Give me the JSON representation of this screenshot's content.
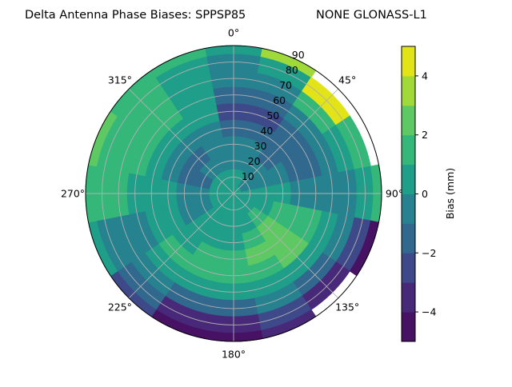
{
  "title_left": "Delta Antenna Phase Biases: SPPSP85",
  "title_right": "NONE GLONASS-L1",
  "chart_data": {
    "type": "heatmap",
    "projection": "polar",
    "theta_zero": "north",
    "theta_direction": "clockwise",
    "angle_tick_labels": [
      "0°",
      "45°",
      "90°",
      "135°",
      "180°",
      "225°",
      "270°",
      "315°"
    ],
    "radial_tick_labels": [
      "10",
      "20",
      "30",
      "40",
      "50",
      "60",
      "70",
      "80",
      "90"
    ],
    "radial_range": [
      0,
      90
    ],
    "grid": true,
    "colorbar": {
      "label": "Bias (mm)",
      "levels": [
        -5,
        -4,
        -3,
        -2,
        -1,
        0,
        1,
        2,
        3,
        4,
        5
      ],
      "tick_labels": [
        "4",
        "2",
        "0",
        "−2",
        "−4"
      ],
      "tick_values": [
        4,
        2,
        0,
        -2,
        -4
      ],
      "colors": [
        "#471164",
        "#482878",
        "#3e4989",
        "#31688e",
        "#26828e",
        "#1f9e89",
        "#35b779",
        "#5ec962",
        "#9fda3a",
        "#e3e418"
      ]
    },
    "azimuths": [
      0,
      22.5,
      45,
      67.5,
      90,
      112.5,
      135,
      157.5,
      180,
      202.5,
      225,
      247.5,
      270,
      292.5,
      315,
      337.5
    ],
    "zeniths": [
      0,
      10,
      20,
      30,
      40,
      50,
      60,
      70,
      80,
      90
    ],
    "values": [
      [
        0.5,
        0.5,
        -0.5,
        -0.5,
        -1.5,
        -2.5,
        -1.5,
        -0.5,
        -0.5,
        0.5
      ],
      [
        0.5,
        0.5,
        -0.5,
        -0.5,
        -1.5,
        -2.5,
        -1.5,
        -0.5,
        0.5,
        3.5
      ],
      [
        0.5,
        -0.5,
        -0.5,
        -1.5,
        -1.5,
        -1.5,
        -0.5,
        1.5,
        4.5,
        null
      ],
      [
        0.5,
        -0.5,
        -0.5,
        -0.5,
        -1.5,
        -1.5,
        -0.5,
        0.5,
        1.5,
        null
      ],
      [
        0.5,
        0.5,
        0.5,
        0.5,
        -0.5,
        -0.5,
        -0.5,
        -0.5,
        0.5,
        1.5
      ],
      [
        0.5,
        0.5,
        0.5,
        1.5,
        1.5,
        1.5,
        0.5,
        -0.5,
        -2.5,
        -4.5
      ],
      [
        0.5,
        0.5,
        1.5,
        2.5,
        2.5,
        2.5,
        0.5,
        -1.5,
        -3.5,
        null
      ],
      [
        0.5,
        0.5,
        0.5,
        1.5,
        2.5,
        1.5,
        0.5,
        -0.5,
        -2.5,
        -3.5
      ],
      [
        0.5,
        0.5,
        0.5,
        0.5,
        1.5,
        1.5,
        0.5,
        -1.5,
        -3.5,
        -4.5
      ],
      [
        0.5,
        0.5,
        0.5,
        0.5,
        1.5,
        1.5,
        0.5,
        -1.5,
        -3.5,
        -4.5
      ],
      [
        0.5,
        0.5,
        0.5,
        0.5,
        0.5,
        1.5,
        0.5,
        -0.5,
        -1.5,
        -2.5
      ],
      [
        0.5,
        0.5,
        -0.5,
        -0.5,
        0.5,
        0.5,
        -0.5,
        -0.5,
        -0.5,
        0.5
      ],
      [
        0.5,
        0.5,
        -0.5,
        -0.5,
        0.5,
        0.5,
        0.5,
        1.5,
        1.5,
        1.5
      ],
      [
        0.5,
        0.5,
        -1.5,
        -1.5,
        -0.5,
        0.5,
        1.5,
        1.5,
        1.5,
        2.5
      ],
      [
        0.5,
        0.5,
        -0.5,
        -1.5,
        -0.5,
        0.5,
        1.5,
        1.5,
        1.5,
        1.5
      ],
      [
        0.5,
        0.5,
        -0.5,
        -0.5,
        -0.5,
        0.5,
        0.5,
        0.5,
        0.5,
        1.5
      ]
    ]
  }
}
